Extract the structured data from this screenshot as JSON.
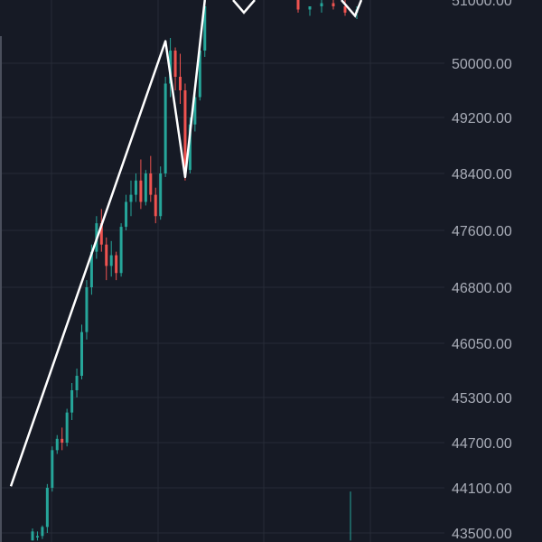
{
  "chart_data": {
    "type": "candlestick",
    "title": "",
    "xlabel": "",
    "ylabel": "",
    "y_tick_labels": [
      "43500.00",
      "44100.00",
      "44700.00",
      "45300.00",
      "46050.00",
      "46800.00",
      "47600.00",
      "48400.00",
      "49200.00",
      "50000.00",
      "51000.00"
    ],
    "y_tick_values": [
      43500,
      44100,
      44700,
      45300,
      46050,
      46800,
      47600,
      48400,
      49200,
      50000,
      51000
    ],
    "ylim": [
      43400,
      51000
    ],
    "grid": true,
    "colors": {
      "background": "#161a25",
      "grid": "#262b37",
      "up": "#26a69a",
      "down": "#ef5350",
      "overlay_line": "#ffffff",
      "tick_text": "#a9adb8"
    },
    "candles": [
      {
        "o": 43400,
        "h": 43560,
        "l": 43400,
        "c": 43520
      },
      {
        "o": 43440,
        "h": 43520,
        "l": 43400,
        "c": 43460
      },
      {
        "o": 43460,
        "h": 43600,
        "l": 43420,
        "c": 43580
      },
      {
        "o": 43580,
        "h": 44150,
        "l": 43500,
        "c": 44100
      },
      {
        "o": 44100,
        "h": 44650,
        "l": 44050,
        "c": 44600
      },
      {
        "o": 44600,
        "h": 44800,
        "l": 44550,
        "c": 44750
      },
      {
        "o": 44750,
        "h": 44900,
        "l": 44600,
        "c": 44700
      },
      {
        "o": 44700,
        "h": 45150,
        "l": 44650,
        "c": 45100
      },
      {
        "o": 45100,
        "h": 45500,
        "l": 45000,
        "c": 45400
      },
      {
        "o": 45400,
        "h": 45700,
        "l": 45300,
        "c": 45600
      },
      {
        "o": 45600,
        "h": 46300,
        "l": 45550,
        "c": 46200
      },
      {
        "o": 46200,
        "h": 46900,
        "l": 46100,
        "c": 46800
      },
      {
        "o": 46800,
        "h": 47400,
        "l": 46700,
        "c": 47300
      },
      {
        "o": 47300,
        "h": 47800,
        "l": 47200,
        "c": 47700
      },
      {
        "o": 47700,
        "h": 47900,
        "l": 47300,
        "c": 47400
      },
      {
        "o": 47400,
        "h": 47500,
        "l": 46900,
        "c": 47100
      },
      {
        "o": 47100,
        "h": 47450,
        "l": 46950,
        "c": 47250
      },
      {
        "o": 47250,
        "h": 47300,
        "l": 46900,
        "c": 47000
      },
      {
        "o": 47000,
        "h": 47700,
        "l": 46950,
        "c": 47650
      },
      {
        "o": 47650,
        "h": 48100,
        "l": 47600,
        "c": 48000
      },
      {
        "o": 48000,
        "h": 48300,
        "l": 47800,
        "c": 48100
      },
      {
        "o": 48100,
        "h": 48400,
        "l": 48000,
        "c": 48300
      },
      {
        "o": 48300,
        "h": 48600,
        "l": 47900,
        "c": 48000
      },
      {
        "o": 48000,
        "h": 48450,
        "l": 47950,
        "c": 48400
      },
      {
        "o": 48400,
        "h": 48650,
        "l": 48000,
        "c": 48100
      },
      {
        "o": 48100,
        "h": 48200,
        "l": 47700,
        "c": 47800
      },
      {
        "o": 47800,
        "h": 48500,
        "l": 47750,
        "c": 48400
      },
      {
        "o": 48400,
        "h": 49800,
        "l": 48350,
        "c": 49700
      },
      {
        "o": 49700,
        "h": 50400,
        "l": 49500,
        "c": 50200
      },
      {
        "o": 50200,
        "h": 50250,
        "l": 49600,
        "c": 49800
      },
      {
        "o": 49800,
        "h": 50150,
        "l": 49400,
        "c": 49600
      },
      {
        "o": 49600,
        "h": 49700,
        "l": 48300,
        "c": 48450
      },
      {
        "o": 48450,
        "h": 49200,
        "l": 48400,
        "c": 49100
      },
      {
        "o": 49100,
        "h": 49600,
        "l": 49000,
        "c": 49500
      },
      {
        "o": 49500,
        "h": 50300,
        "l": 49450,
        "c": 50200
      },
      {
        "o": 50200,
        "h": 51000,
        "l": 50100,
        "c": 50900
      }
    ],
    "right_cluster": [
      {
        "o": 51000,
        "h": 51000,
        "l": 50800,
        "c": 50850
      },
      {
        "o": 50850,
        "h": 50900,
        "l": 50750,
        "c": 50900
      },
      {
        "o": 50900,
        "h": 51000,
        "l": 50800,
        "c": 50950
      },
      {
        "o": 50950,
        "h": 51000,
        "l": 50850,
        "c": 50900
      },
      {
        "o": 50900,
        "h": 51000,
        "l": 50750,
        "c": 50800
      },
      {
        "o": 50800,
        "h": 50900,
        "l": 50700,
        "c": 50850
      }
    ],
    "overlay_polyline": [
      {
        "i": 0,
        "y": 44120
      },
      {
        "i": 27,
        "y": 50350
      },
      {
        "i": 31,
        "y": 48350
      },
      {
        "i": 35,
        "y": 51000
      }
    ],
    "overlay_segments": [
      [
        {
          "x": 258,
          "y": 51000
        },
        {
          "x": 270,
          "y": 50800
        },
        {
          "x": 282,
          "y": 51000
        }
      ],
      [
        {
          "x": 378,
          "y": 51000
        },
        {
          "x": 393,
          "y": 50750
        },
        {
          "x": 400,
          "y": 51000
        }
      ]
    ],
    "volume_spike": {
      "x": 388,
      "from": 43400,
      "to": 44050
    }
  }
}
